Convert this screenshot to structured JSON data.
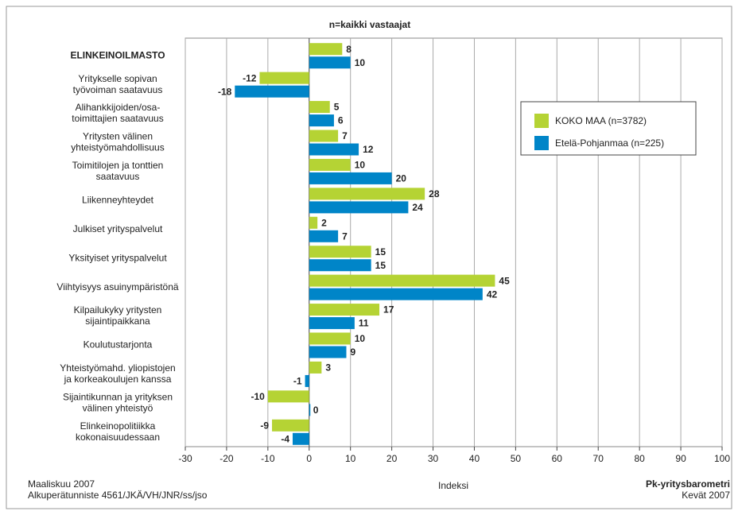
{
  "chart_data": {
    "type": "bar",
    "orientation": "horizontal",
    "title": "n=kaikki vastaajat",
    "xlabel": "Indeksi",
    "categories": [
      [
        "ELINKEINOILMASTO"
      ],
      [
        "Yritykselle sopivan",
        "työvoiman saatavuus"
      ],
      [
        "Alihankkijoiden/osa-",
        "toimittajien saatavuus"
      ],
      [
        "Yritysten välinen",
        "yhteistyömahdollisuus"
      ],
      [
        "Toimitilojen ja tonttien",
        "saatavuus"
      ],
      [
        "Liikenneyhteydet"
      ],
      [
        "Julkiset yrityspalvelut"
      ],
      [
        "Yksityiset yrityspalvelut"
      ],
      [
        "Viihtyisyys asuinympäristönä"
      ],
      [
        "Kilpailukyky yritysten",
        "sijaintipaikkana"
      ],
      [
        "Koulutustarjonta"
      ],
      [
        "Yhteistyömahd. yliopistojen",
        "ja korkeakoulujen kanssa"
      ],
      [
        "Sijaintikunnan ja yrityksen",
        "välinen yhteistyö"
      ],
      [
        "Elinkeinopolitiikka",
        "kokonaisuudessaan"
      ]
    ],
    "series": [
      {
        "name": "KOKO MAA (n=3782)",
        "color": "#b5d334",
        "values": [
          8,
          -12,
          5,
          7,
          10,
          28,
          2,
          15,
          45,
          17,
          10,
          3,
          -10,
          -9
        ]
      },
      {
        "name": "Etelä-Pohjanmaa (n=225)",
        "color": "#0085c8",
        "values": [
          10,
          -18,
          6,
          12,
          20,
          24,
          7,
          15,
          42,
          11,
          9,
          -1,
          0,
          -4
        ]
      }
    ],
    "xlim": [
      -30,
      100
    ],
    "xticks": [
      -30,
      -20,
      -10,
      0,
      10,
      20,
      30,
      40,
      50,
      60,
      70,
      80,
      90,
      100
    ],
    "grid": true,
    "footer_left": [
      "Maaliskuu 2007",
      "Alkuperätunniste 4561/JKÄ/VH/JNR/ss/jso"
    ],
    "footer_right": [
      "Pk-yritysbarometri",
      "Kevät 2007"
    ]
  }
}
